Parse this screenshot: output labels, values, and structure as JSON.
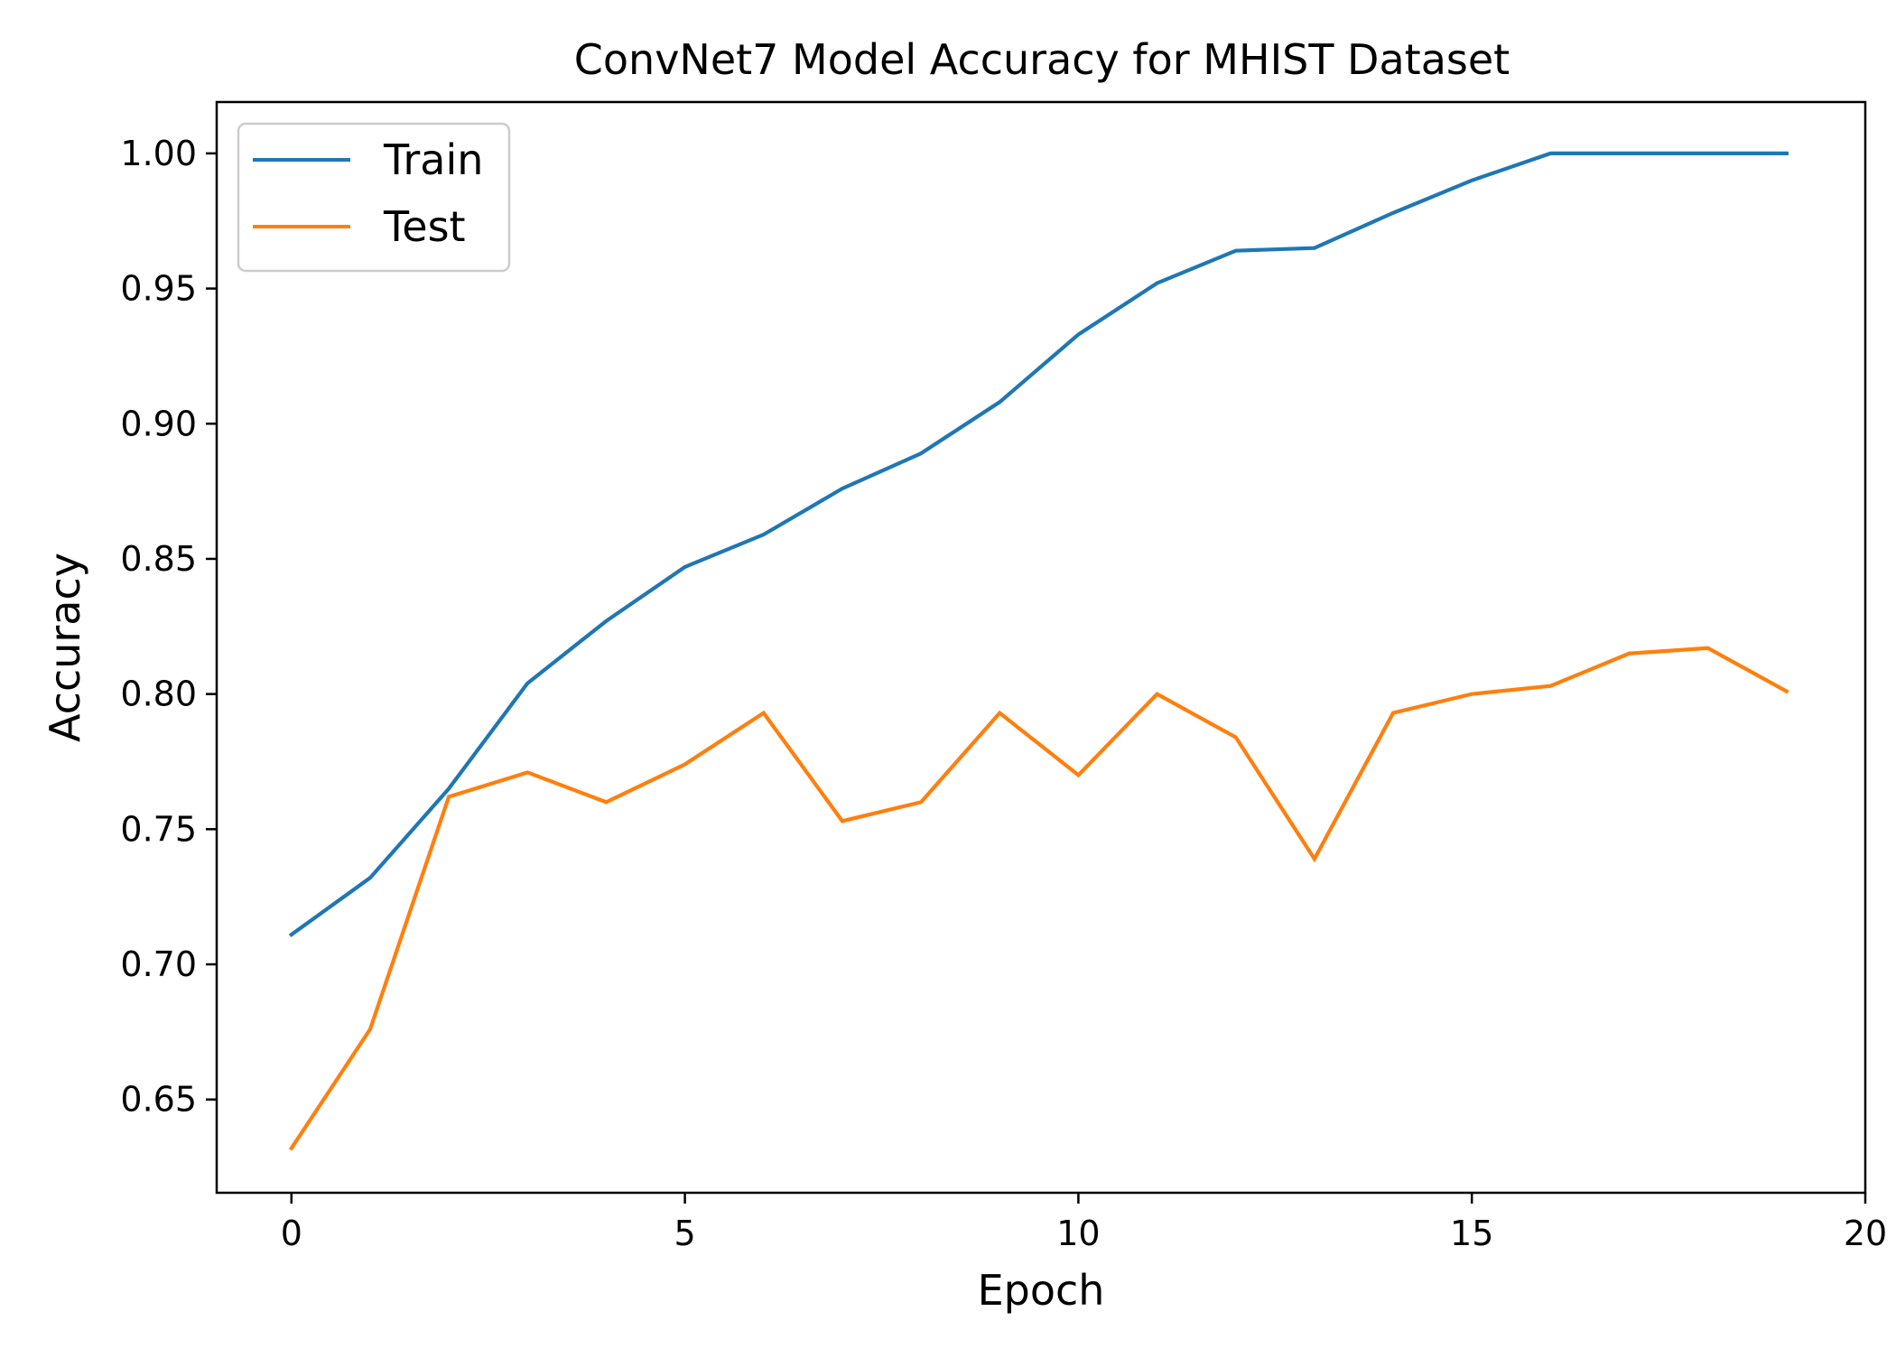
{
  "chart_data": {
    "type": "line",
    "title": "ConvNet7 Model Accuracy for MHIST Dataset",
    "xlabel": "Epoch",
    "ylabel": "Accuracy",
    "xlim": [
      -0.95,
      20.0
    ],
    "ylim": [
      0.6155,
      1.019
    ],
    "xticks": [
      0,
      5,
      10,
      15,
      20
    ],
    "xtick_labels": [
      "0",
      "5",
      "10",
      "15",
      "20"
    ],
    "yticks": [
      0.65,
      0.7,
      0.75,
      0.8,
      0.85,
      0.9,
      0.95,
      1.0
    ],
    "ytick_labels": [
      "0.65",
      "0.70",
      "0.75",
      "0.80",
      "0.85",
      "0.90",
      "0.95",
      "1.00"
    ],
    "grid": false,
    "legend_position": "upper-left",
    "x": [
      0,
      1,
      2,
      3,
      4,
      5,
      6,
      7,
      8,
      9,
      10,
      11,
      12,
      13,
      14,
      15,
      16,
      17,
      18,
      19
    ],
    "series": [
      {
        "name": "Train",
        "color": "#1f77b4",
        "values": [
          0.711,
          0.732,
          0.765,
          0.804,
          0.827,
          0.847,
          0.859,
          0.876,
          0.889,
          0.908,
          0.933,
          0.952,
          0.964,
          0.965,
          0.978,
          0.99,
          1.0,
          1.0,
          1.0,
          1.0
        ]
      },
      {
        "name": "Test",
        "color": "#ff7f0e",
        "values": [
          0.632,
          0.676,
          0.762,
          0.771,
          0.76,
          0.774,
          0.793,
          0.753,
          0.76,
          0.793,
          0.77,
          0.8,
          0.784,
          0.739,
          0.793,
          0.8,
          0.803,
          0.815,
          0.817,
          0.801
        ]
      }
    ]
  }
}
